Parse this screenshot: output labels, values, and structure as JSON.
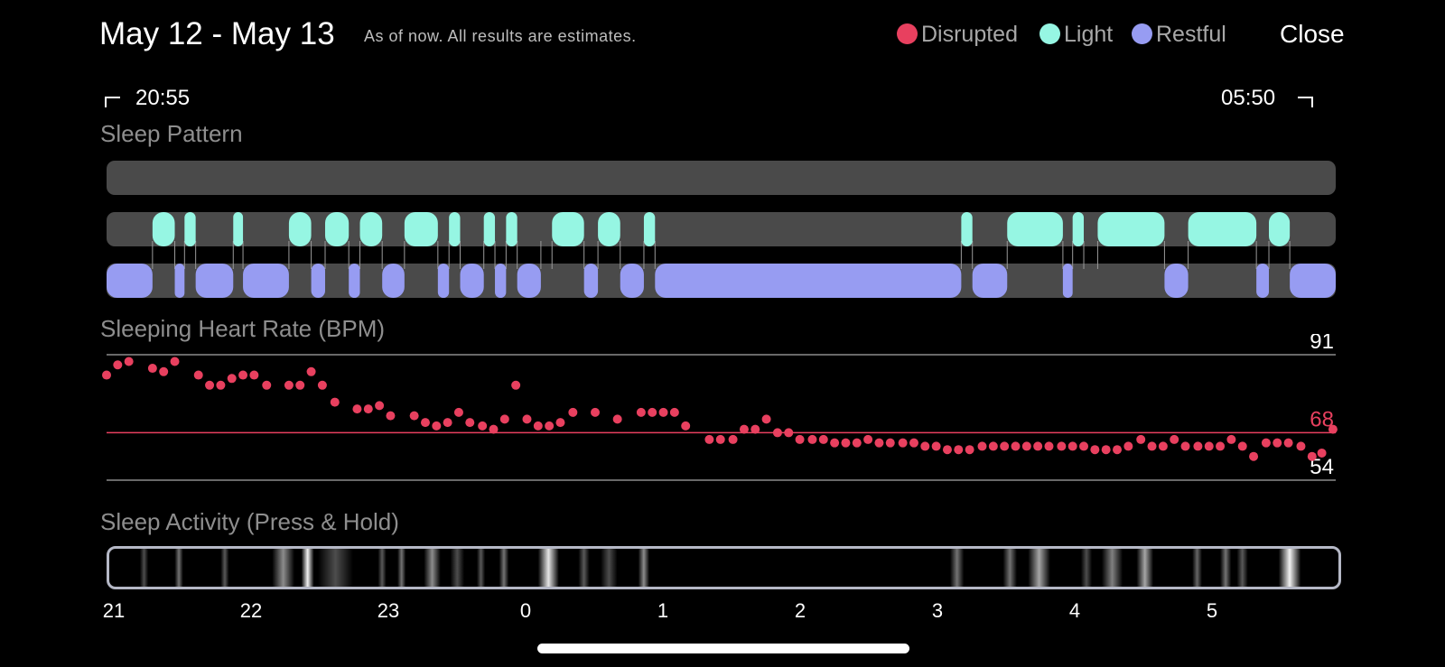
{
  "header": {
    "title": "May 12 - May 13",
    "subtitle": "As of now. All results are estimates.",
    "close_label": "Close"
  },
  "legend": [
    {
      "label": "Disrupted",
      "color": "#e8405f"
    },
    {
      "label": "Light",
      "color": "#96f6e3"
    },
    {
      "label": "Restful",
      "color": "#979cf2"
    }
  ],
  "session": {
    "start": "20:55",
    "end": "05:50"
  },
  "sections": {
    "pattern": "Sleep Pattern",
    "heart_rate": "Sleeping Heart Rate (BPM)",
    "activity": "Sleep Activity (Press & Hold)"
  },
  "chart_data": [
    {
      "type": "timeline",
      "title": "Sleep Pattern",
      "x_unit": "hour since 21:00",
      "xlim": [
        0,
        8.83
      ],
      "rows": [
        {
          "name": "Disrupted",
          "color": "#e8405f",
          "segments": []
        },
        {
          "name": "Light",
          "color": "#96f6e3",
          "segments": [
            [
              0.33,
              0.49
            ],
            [
              0.56,
              0.64
            ],
            [
              0.91,
              0.98
            ],
            [
              1.31,
              1.47
            ],
            [
              1.57,
              1.74
            ],
            [
              1.82,
              1.98
            ],
            [
              2.14,
              2.38
            ],
            [
              2.46,
              2.54
            ],
            [
              2.71,
              2.79
            ],
            [
              2.87,
              2.95
            ],
            [
              3.2,
              3.43
            ],
            [
              3.53,
              3.69
            ],
            [
              3.86,
              3.94
            ],
            [
              6.14,
              6.22
            ],
            [
              6.47,
              6.87
            ],
            [
              6.94,
              7.02
            ],
            [
              7.12,
              7.6
            ],
            [
              7.77,
              8.26
            ],
            [
              8.35,
              8.5
            ]
          ]
        },
        {
          "name": "Restful",
          "color": "#979cf2",
          "segments": [
            [
              0,
              0.33
            ],
            [
              0.49,
              0.56
            ],
            [
              0.64,
              0.91
            ],
            [
              0.98,
              1.31
            ],
            [
              1.47,
              1.57
            ],
            [
              1.74,
              1.82
            ],
            [
              1.98,
              2.14
            ],
            [
              2.38,
              2.46
            ],
            [
              2.54,
              2.71
            ],
            [
              2.79,
              2.87
            ],
            [
              2.95,
              3.12
            ],
            [
              3.43,
              3.53
            ],
            [
              3.69,
              3.86
            ],
            [
              3.94,
              6.14
            ],
            [
              6.22,
              6.47
            ],
            [
              6.87,
              6.94
            ],
            [
              7.6,
              7.77
            ],
            [
              8.26,
              8.35
            ],
            [
              8.5,
              8.83
            ]
          ]
        }
      ]
    },
    {
      "type": "scatter",
      "title": "Sleeping Heart Rate (BPM)",
      "x_unit": "hour since 21:00",
      "ylim": [
        54,
        91
      ],
      "reference_lines": [
        {
          "value": 91,
          "label": "91",
          "color": "#8c8c8c",
          "label_color": "#ffffff"
        },
        {
          "value": 68,
          "label": "68",
          "color": "#e8405f",
          "label_color": "#e8405f"
        },
        {
          "value": 54,
          "label": "54",
          "color": "#8c8c8c",
          "label_color": "#ffffff"
        }
      ],
      "x": [
        0.0,
        0.08,
        0.16,
        0.33,
        0.41,
        0.49,
        0.66,
        0.74,
        0.82,
        0.9,
        0.98,
        1.06,
        1.15,
        1.31,
        1.39,
        1.47,
        1.55,
        1.64,
        1.8,
        1.88,
        1.96,
        2.04,
        2.21,
        2.29,
        2.37,
        2.45,
        2.53,
        2.61,
        2.7,
        2.78,
        2.86,
        2.94,
        3.02,
        3.1,
        3.18,
        3.26,
        3.35,
        3.51,
        3.67,
        3.84,
        3.92,
        4.0,
        4.08,
        4.16,
        4.33,
        4.41,
        4.5,
        4.58,
        4.66,
        4.74,
        4.82,
        4.9,
        4.98,
        5.07,
        5.15,
        5.23,
        5.31,
        5.39,
        5.47,
        5.55,
        5.63,
        5.72,
        5.8,
        5.88,
        5.96,
        6.04,
        6.12,
        6.2,
        6.29,
        6.37,
        6.45,
        6.53,
        6.61,
        6.69,
        6.77,
        6.86,
        6.94,
        7.02,
        7.1,
        7.18,
        7.26,
        7.34,
        7.43,
        7.51,
        7.59,
        7.67,
        7.75,
        7.84,
        7.92,
        8.0,
        8.08,
        8.16,
        8.24,
        8.33,
        8.41,
        8.49,
        8.58,
        8.66,
        8.73,
        8.81
      ],
      "y": [
        85,
        88,
        89,
        87,
        86,
        89,
        85,
        82,
        82,
        84,
        85,
        85,
        82,
        82,
        82,
        86,
        82,
        77,
        75,
        75,
        76,
        73,
        73,
        71,
        70,
        71,
        74,
        71,
        70,
        69,
        72,
        82,
        72,
        70,
        70,
        71,
        74,
        74,
        72,
        74,
        74,
        74,
        74,
        70,
        66,
        66,
        66,
        69,
        69,
        72,
        68,
        68,
        66,
        66,
        66,
        65,
        65,
        65,
        66,
        65,
        65,
        65,
        65,
        64,
        64,
        63,
        63,
        63,
        64,
        64,
        64,
        64,
        64,
        64,
        64,
        64,
        64,
        64,
        63,
        63,
        63,
        64,
        66,
        64,
        64,
        66,
        64,
        64,
        64,
        64,
        66,
        64,
        61,
        65,
        65,
        65,
        64,
        61,
        62,
        69
      ]
    },
    {
      "type": "heatmap",
      "title": "Sleep Activity (Press & Hold)",
      "x_unit": "hour since 21:00",
      "x_tick_labels": [
        "21",
        "22",
        "23",
        "0",
        "1",
        "2",
        "3",
        "4",
        "5"
      ],
      "bands": [
        [
          0.22,
          0.28,
          0.3
        ],
        [
          0.47,
          0.53,
          0.45
        ],
        [
          0.8,
          0.86,
          0.35
        ],
        [
          1.17,
          1.33,
          0.55
        ],
        [
          1.38,
          1.47,
          0.95
        ],
        [
          1.5,
          1.75,
          0.3
        ],
        [
          1.93,
          1.99,
          0.35
        ],
        [
          2.07,
          2.13,
          0.45
        ],
        [
          2.26,
          2.38,
          0.55
        ],
        [
          2.45,
          2.55,
          0.3
        ],
        [
          2.64,
          2.7,
          0.35
        ],
        [
          2.8,
          2.87,
          0.45
        ],
        [
          3.08,
          3.23,
          0.9
        ],
        [
          3.37,
          3.45,
          0.35
        ],
        [
          3.53,
          3.65,
          0.3
        ],
        [
          3.8,
          3.88,
          0.55
        ],
        [
          6.04,
          6.14,
          0.45
        ],
        [
          6.42,
          6.52,
          0.45
        ],
        [
          6.6,
          6.76,
          0.65
        ],
        [
          6.98,
          7.06,
          0.3
        ],
        [
          7.13,
          7.28,
          0.5
        ],
        [
          7.38,
          7.5,
          0.65
        ],
        [
          7.78,
          7.85,
          0.4
        ],
        [
          7.98,
          8.06,
          0.45
        ],
        [
          8.1,
          8.18,
          0.35
        ],
        [
          8.4,
          8.56,
          0.95
        ]
      ]
    }
  ]
}
